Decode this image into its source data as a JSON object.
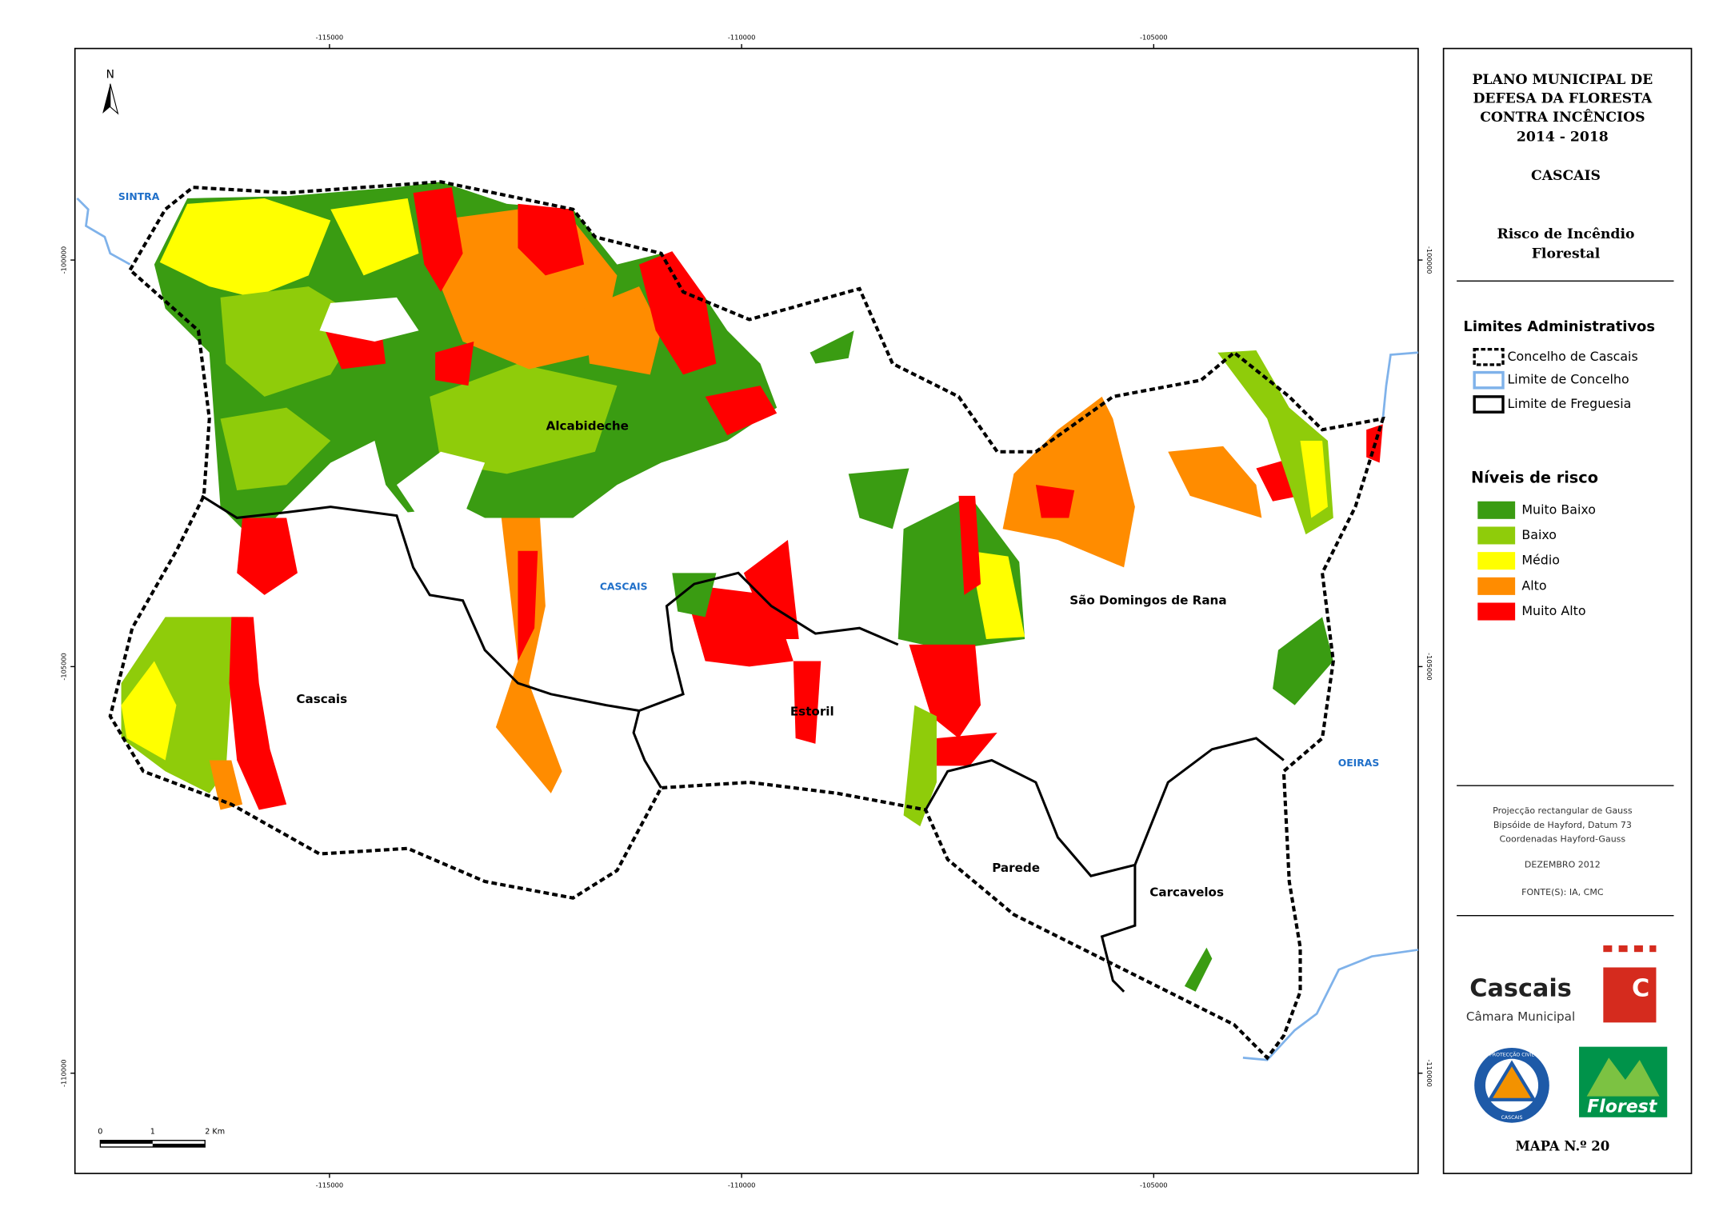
{
  "map": {
    "coordinates": {
      "x": [
        -115000,
        -110000,
        -105000
      ],
      "y": [
        -100000,
        -105000,
        -110000
      ]
    },
    "north": "N",
    "scale_bar": [
      "0",
      "1",
      "2 Km"
    ],
    "neighbours": {
      "sintra": "SINTRA",
      "oeiras": "OEIRAS",
      "cascais": "CASCAIS"
    },
    "parishes": {
      "alcabideche": "Alcabideche",
      "cascais": "Cascais",
      "estoril": "Estoril",
      "sao_domingos": "São Domingos de Rana",
      "parede": "Parede",
      "carcavelos": "Carcavelos"
    }
  },
  "panel": {
    "title": [
      "PLANO MUNICIPAL DE",
      "DEFESA DA FLORESTA",
      "CONTRA INCÊNCIOS",
      "2014 - 2018"
    ],
    "municipality": "CASCAIS",
    "subtitle": [
      "Risco de Incêndio",
      "Florestal"
    ],
    "limits_title": "Limites Administrativos",
    "limits": [
      "Concelho de Cascais",
      "Limite de Concelho",
      "Limite de Freguesia"
    ],
    "legend_title": "Níveis de risco",
    "legend": [
      {
        "label": "Muito Baixo",
        "color": "#3a9c12"
      },
      {
        "label": "Baixo",
        "color": "#8fcc0a"
      },
      {
        "label": "Médio",
        "color": "#ffff00"
      },
      {
        "label": "Alto",
        "color": "#ff8c00"
      },
      {
        "label": "Muito Alto",
        "color": "#ff0000"
      }
    ],
    "notes": [
      "Projecção rectangular de Gauss",
      "Bipsóide de Hayford, Datum 73",
      "Coordenadas Hayford-Gauss"
    ],
    "date": "DEZEMBRO 2012",
    "sources": "FONTE(S): IA, CMC",
    "logos": {
      "cascais": "Cascais",
      "camara": "Câmara Municipal",
      "c": "C",
      "civil_top": "PROTECÇÃO CIVIL",
      "civil_bottom": "CASCAIS",
      "florest": "Florest"
    },
    "map_number": "MAPA N.º 20"
  }
}
